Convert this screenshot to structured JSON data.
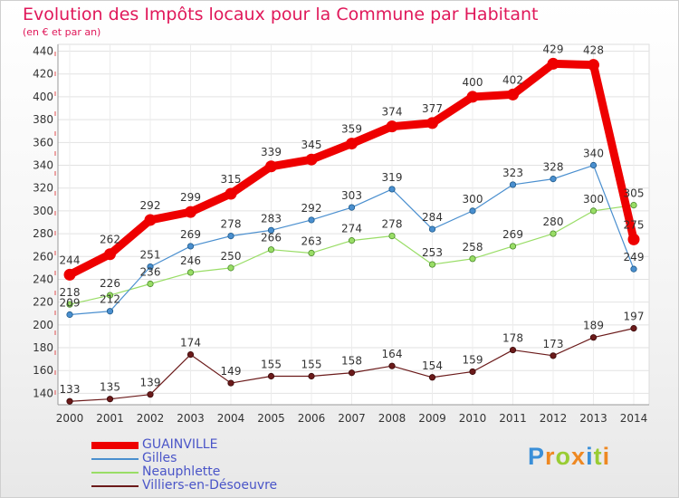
{
  "chart_data": {
    "type": "line",
    "title": "Evolution des Impôts locaux pour la Commune par Habitant",
    "subtitle": "(en € et par an)",
    "xlabel": "",
    "ylabel": "",
    "x": [
      "2000",
      "2001",
      "2002",
      "2003",
      "2004",
      "2005",
      "2006",
      "2007",
      "2008",
      "2009",
      "2010",
      "2011",
      "2012",
      "2013",
      "2014"
    ],
    "yticks": [
      "140",
      "160",
      "180",
      "200",
      "220",
      "240",
      "260",
      "280",
      "300",
      "320",
      "340",
      "360",
      "380",
      "400",
      "420",
      "440"
    ],
    "ylim": [
      130,
      446
    ],
    "grid": true,
    "legend_position": "bottom-left",
    "series": [
      {
        "name": "GUAINVILLE",
        "color": "#ee0000",
        "values": [
          244,
          262,
          292,
          299,
          315,
          339,
          345,
          359,
          374,
          377,
          400,
          402,
          429,
          428,
          275
        ]
      },
      {
        "name": "Gilles",
        "color": "#4a8fcf",
        "values": [
          209,
          212,
          251,
          269,
          278,
          283,
          292,
          303,
          319,
          284,
          300,
          323,
          328,
          340,
          249
        ]
      },
      {
        "name": "Neauphlette",
        "color": "#99dd66",
        "values": [
          218,
          226,
          236,
          246,
          250,
          266,
          263,
          274,
          278,
          253,
          258,
          269,
          280,
          300,
          305
        ]
      },
      {
        "name": "Villiers-en-Désoeuvre",
        "color": "#6b1a1a",
        "values": [
          133,
          135,
          139,
          174,
          149,
          155,
          155,
          158,
          164,
          154,
          159,
          178,
          173,
          189,
          197
        ]
      }
    ],
    "data_labels": [
      [
        "244",
        "262",
        "292",
        "299",
        "315",
        "339",
        "345",
        "359",
        "374",
        "377",
        "400",
        "402",
        "429",
        "428",
        "275"
      ],
      [
        "209",
        "212",
        "251",
        "269",
        "278",
        "283",
        "292",
        "303",
        "319",
        "284",
        "300",
        "323",
        "328",
        "340",
        "249"
      ],
      [
        "218",
        "226",
        "236",
        "246",
        "250",
        "266",
        "263",
        "274",
        "278",
        "253",
        "258",
        "269",
        "280",
        "300",
        "305"
      ],
      [
        "133",
        "135",
        "139",
        "174",
        "149",
        "155",
        "155",
        "158",
        "164",
        "154",
        "159",
        "178",
        "173",
        "189",
        "197"
      ]
    ]
  },
  "logo": {
    "letters": [
      "P",
      "r",
      "o",
      "x",
      "i",
      "t",
      "i"
    ],
    "colors": [
      "#3a8fd8",
      "#ee8822",
      "#99cc33",
      "#ee8822",
      "#3a8fd8",
      "#99cc33",
      "#ee8822"
    ]
  }
}
